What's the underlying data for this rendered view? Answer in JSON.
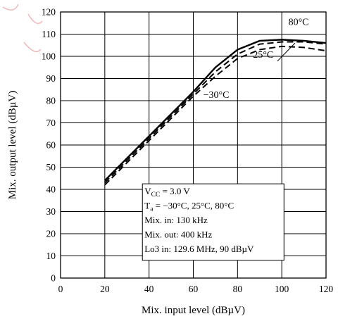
{
  "chart_data": {
    "type": "line",
    "title": "",
    "xlabel": "Mix. input level  (dBµV)",
    "ylabel": "Mix. output level  (dBµV)",
    "xlim": [
      0,
      120
    ],
    "ylim": [
      0,
      120
    ],
    "x_ticks": [
      0,
      20,
      40,
      60,
      80,
      100,
      120
    ],
    "y_ticks": [
      0,
      10,
      20,
      30,
      40,
      50,
      60,
      70,
      80,
      90,
      100,
      110,
      120
    ],
    "grid": true,
    "series": [
      {
        "name": "80°C",
        "style": "solid",
        "x": [
          20,
          30,
          40,
          50,
          60,
          70,
          80,
          90,
          100,
          110,
          120
        ],
        "y": [
          44,
          54,
          64,
          74,
          84,
          95,
          103,
          107,
          107.5,
          107,
          106
        ]
      },
      {
        "name": "25°C",
        "style": "dashed",
        "x": [
          20,
          30,
          40,
          50,
          60,
          70,
          80,
          90,
          100,
          110,
          120
        ],
        "y": [
          43,
          53,
          63,
          73,
          83,
          93,
          101,
          105.5,
          106.5,
          106.5,
          105.5
        ]
      },
      {
        "name": "−30°C",
        "style": "dashed",
        "x": [
          20,
          30,
          40,
          50,
          60,
          70,
          80,
          90,
          100,
          110,
          120
        ],
        "y": [
          42,
          52,
          62,
          72,
          82,
          91,
          99,
          103,
          104.5,
          104,
          102.5
        ]
      }
    ],
    "annotations": {
      "label_80": "80°C",
      "label_25": "25°C",
      "label_m30": "−30°C"
    },
    "conditions": {
      "vcc_prefix": "V",
      "vcc_sub": "CC",
      "vcc_value": " = 3.0 V",
      "ta_prefix": "T",
      "ta_sub": "a",
      "ta_value": " = −30°C, 25°C, 80°C",
      "mix_in": "Mix. in: 130 kHz",
      "mix_out": "Mix. out: 400 kHz",
      "lo3_in": "Lo3 in: 129.6 MHz, 90 dBµV"
    }
  }
}
